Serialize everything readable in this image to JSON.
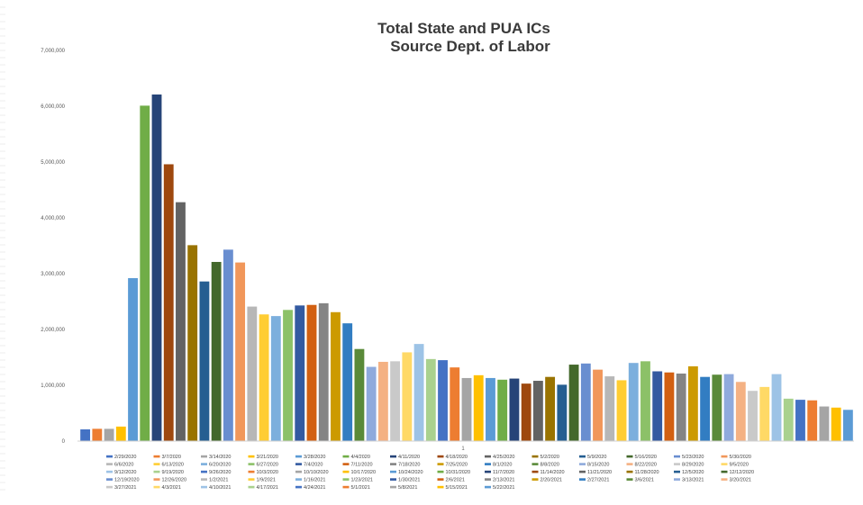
{
  "chart_data": {
    "type": "bar",
    "title": "Total State and PUA ICs",
    "subtitle": "Source Dept. of Labor",
    "xlabel": "",
    "ylabel": "",
    "ylim": [
      0,
      7000000
    ],
    "y_ticks": [
      "0",
      "1,000,000",
      "2,000,000",
      "3,000,000",
      "4,000,000",
      "5,000,000",
      "6,000,000",
      "7,000,000"
    ],
    "grid": false,
    "legend_position": "bottom",
    "x_axis_marker": "1",
    "categories": [
      "2/29/2020",
      "3/7/2020",
      "3/14/2020",
      "3/21/2020",
      "3/28/2020",
      "4/4/2020",
      "4/11/2020",
      "4/18/2020",
      "4/25/2020",
      "5/2/2020",
      "5/9/2020",
      "5/16/2020",
      "5/23/2020",
      "5/30/2020",
      "6/6/2020",
      "6/13/2020",
      "6/20/2020",
      "6/27/2020",
      "7/4/2020",
      "7/11/2020",
      "7/18/2020",
      "7/25/2020",
      "8/1/2020",
      "8/8/2020",
      "8/15/2020",
      "8/22/2020",
      "8/29/2020",
      "9/5/2020",
      "9/12/2020",
      "9/19/2020",
      "9/26/2020",
      "10/3/2020",
      "10/10/2020",
      "10/17/2020",
      "10/24/2020",
      "10/31/2020",
      "11/7/2020",
      "11/14/2020",
      "11/21/2020",
      "11/28/2020",
      "12/5/2020",
      "12/12/2020",
      "12/19/2020",
      "12/26/2020",
      "1/2/2021",
      "1/9/2021",
      "1/16/2021",
      "1/23/2021",
      "1/30/2021",
      "2/6/2021",
      "2/13/2021",
      "2/20/2021",
      "2/27/2021",
      "3/6/2021",
      "3/13/2021",
      "3/20/2021",
      "3/27/2021",
      "4/3/2021",
      "4/10/2021",
      "4/17/2021",
      "4/24/2021",
      "5/1/2021",
      "5/8/2021",
      "5/15/2021",
      "5/22/2021"
    ],
    "values": [
      210000,
      220000,
      220000,
      260000,
      2920000,
      6010000,
      6210000,
      4960000,
      4280000,
      3510000,
      2860000,
      3210000,
      3430000,
      3200000,
      2410000,
      2270000,
      2240000,
      2350000,
      2430000,
      2440000,
      2470000,
      2310000,
      2110000,
      1650000,
      1330000,
      1420000,
      1430000,
      1590000,
      1740000,
      1470000,
      1450000,
      1320000,
      1130000,
      1180000,
      1130000,
      1100000,
      1120000,
      1030000,
      1080000,
      1150000,
      1010000,
      1370000,
      1390000,
      1280000,
      1160000,
      1090000,
      1400000,
      1430000,
      1250000,
      1230000,
      1210000,
      1340000,
      1150000,
      1190000,
      1200000,
      1060000,
      900000,
      970000,
      1200000,
      760000,
      740000,
      730000,
      620000,
      600000,
      560000
    ],
    "colors": [
      "#4472C4",
      "#ED7D31",
      "#A5A5A5",
      "#FFC000",
      "#5B9BD5",
      "#70AD47",
      "#264478",
      "#9E480E",
      "#636363",
      "#997300",
      "#255E91",
      "#43682B",
      "#698ED0",
      "#F1975A",
      "#B7B7B7",
      "#FFCD33",
      "#7CAFDD",
      "#8CC168",
      "#335AA1",
      "#D26012",
      "#848484",
      "#CC9A00",
      "#327DC2",
      "#5A8A39",
      "#8FAADC",
      "#F4B183",
      "#C9C9C9",
      "#FFD966",
      "#9DC3E6",
      "#A9D18E"
    ]
  }
}
